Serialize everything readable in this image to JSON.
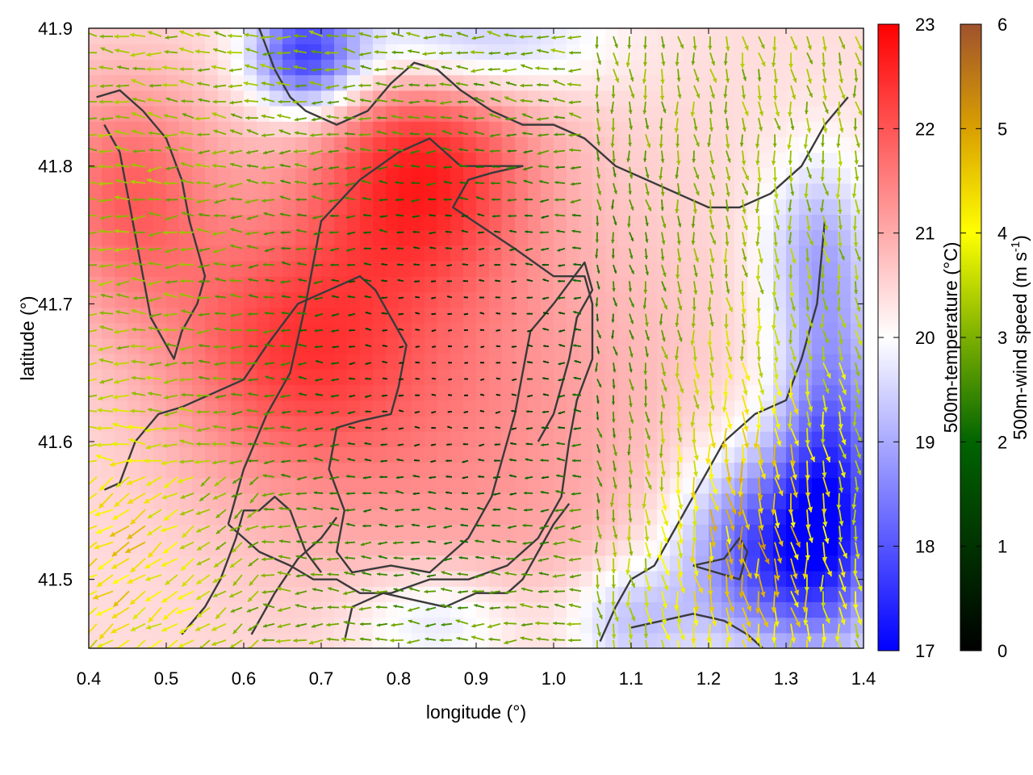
{
  "chart_data": {
    "type": "heatmap",
    "title": "",
    "xlabel": "longitude (°)",
    "ylabel": "latitude (°)",
    "xlim": [
      0.4,
      1.4
    ],
    "ylim": [
      41.45,
      41.9
    ],
    "x_ticks": [
      0.4,
      0.5,
      0.6,
      0.7,
      0.8,
      0.9,
      1.0,
      1.1,
      1.2,
      1.3,
      1.4
    ],
    "x_tick_labels": [
      "0.4",
      "0.5",
      "0.6",
      "0.7",
      "0.8",
      "0.9",
      "1.0",
      "1.1",
      "1.2",
      "1.3",
      "1.4"
    ],
    "y_ticks": [
      41.5,
      41.6,
      41.7,
      41.8,
      41.9
    ],
    "y_tick_labels": [
      "41.5",
      "41.6",
      "41.7",
      "41.8",
      "41.9"
    ],
    "grid": false,
    "temperature_colorbar": {
      "label": "500m-temperature (°C)",
      "range": [
        17,
        23
      ],
      "ticks": [
        17,
        18,
        19,
        20,
        21,
        22,
        23
      ],
      "tick_labels": [
        "17",
        "18",
        "19",
        "20",
        "21",
        "22",
        "23"
      ],
      "colors": [
        "#0000ff",
        "#ffffff",
        "#ff0000"
      ]
    },
    "wind_colorbar": {
      "label": "500m-wind speed (m s",
      "label_superscript": "-1",
      "label_suffix": ")",
      "range": [
        0,
        6
      ],
      "ticks": [
        0,
        1,
        2,
        3,
        4,
        5,
        6
      ],
      "tick_labels": [
        "0",
        "1",
        "2",
        "3",
        "4",
        "5",
        "6"
      ],
      "colors": [
        "#000000",
        "#006400",
        "#7cb000",
        "#ffff00",
        "#d9a000",
        "#a0522d"
      ]
    },
    "temperature_centers": [
      {
        "lon": 0.83,
        "lat": 41.8,
        "value": 22.3,
        "sigma_lon": 0.1,
        "sigma_lat": 0.06
      },
      {
        "lon": 0.66,
        "lat": 41.67,
        "value": 22.0,
        "sigma_lon": 0.12,
        "sigma_lat": 0.07
      },
      {
        "lon": 0.45,
        "lat": 41.78,
        "value": 21.8,
        "sigma_lon": 0.08,
        "sigma_lat": 0.06
      },
      {
        "lon": 0.9,
        "lat": 41.62,
        "value": 21.3,
        "sigma_lon": 0.18,
        "sigma_lat": 0.12
      },
      {
        "lon": 0.68,
        "lat": 41.88,
        "value": 17.8,
        "sigma_lon": 0.05,
        "sigma_lat": 0.03
      },
      {
        "lon": 0.88,
        "lat": 41.89,
        "value": 19.0,
        "sigma_lon": 0.12,
        "sigma_lat": 0.03
      },
      {
        "lon": 1.28,
        "lat": 41.52,
        "value": 17.8,
        "sigma_lon": 0.08,
        "sigma_lat": 0.05
      },
      {
        "lon": 1.36,
        "lat": 41.58,
        "value": 18.0,
        "sigma_lon": 0.05,
        "sigma_lat": 0.08
      },
      {
        "lon": 1.34,
        "lat": 41.74,
        "value": 19.2,
        "sigma_lon": 0.05,
        "sigma_lat": 0.05
      },
      {
        "lon": 0.85,
        "lat": 41.47,
        "value": 19.4,
        "sigma_lon": 0.08,
        "sigma_lat": 0.03
      },
      {
        "lon": 1.1,
        "lat": 41.47,
        "value": 19.2,
        "sigma_lon": 0.06,
        "sigma_lat": 0.03
      }
    ],
    "contours": [
      {
        "level": 21,
        "points": [
          [
            0.42,
            41.565
          ],
          [
            0.44,
            41.57
          ],
          [
            0.46,
            41.6
          ],
          [
            0.49,
            41.62
          ],
          [
            0.52,
            41.625
          ],
          [
            0.56,
            41.635
          ],
          [
            0.6,
            41.645
          ],
          [
            0.63,
            41.67
          ],
          [
            0.67,
            41.7
          ],
          [
            0.71,
            41.71
          ],
          [
            0.75,
            41.72
          ],
          [
            0.77,
            41.71
          ],
          [
            0.79,
            41.69
          ],
          [
            0.81,
            41.67
          ],
          [
            0.8,
            41.64
          ],
          [
            0.79,
            41.62
          ],
          [
            0.75,
            41.615
          ],
          [
            0.72,
            41.61
          ],
          [
            0.71,
            41.58
          ],
          [
            0.73,
            41.55
          ],
          [
            0.72,
            41.52
          ],
          [
            0.74,
            41.505
          ],
          [
            0.79,
            41.51
          ],
          [
            0.84,
            41.505
          ],
          [
            0.89,
            41.53
          ],
          [
            0.92,
            41.56
          ],
          [
            0.95,
            41.62
          ],
          [
            0.97,
            41.68
          ],
          [
            1.0,
            41.7
          ],
          [
            1.04,
            41.73
          ],
          [
            1.05,
            41.71
          ],
          [
            1.03,
            41.69
          ],
          [
            1.02,
            41.66
          ],
          [
            1.0,
            41.62
          ],
          [
            0.98,
            41.6
          ]
        ]
      },
      {
        "level": 21,
        "points": [
          [
            0.58,
            41.54
          ],
          [
            0.6,
            41.58
          ],
          [
            0.63,
            41.62
          ],
          [
            0.66,
            41.65
          ],
          [
            0.68,
            41.7
          ],
          [
            0.7,
            41.76
          ],
          [
            0.75,
            41.79
          ],
          [
            0.8,
            41.81
          ],
          [
            0.84,
            41.82
          ],
          [
            0.88,
            41.8
          ],
          [
            0.93,
            41.8
          ],
          [
            0.96,
            41.8
          ],
          [
            0.92,
            41.795
          ],
          [
            0.89,
            41.79
          ],
          [
            0.87,
            41.77
          ],
          [
            0.95,
            41.74
          ],
          [
            1.0,
            41.72
          ],
          [
            1.04,
            41.72
          ],
          [
            1.05,
            41.7
          ],
          [
            1.05,
            41.66
          ],
          [
            1.03,
            41.63
          ],
          [
            1.02,
            41.6
          ],
          [
            1.01,
            41.56
          ],
          [
            0.98,
            41.53
          ],
          [
            0.94,
            41.51
          ],
          [
            0.89,
            41.5
          ],
          [
            0.84,
            41.5
          ],
          [
            0.79,
            41.49
          ],
          [
            0.75,
            41.49
          ],
          [
            0.72,
            41.5
          ],
          [
            0.69,
            41.5
          ],
          [
            0.66,
            41.51
          ],
          [
            0.62,
            41.52
          ],
          [
            0.58,
            41.54
          ]
        ]
      },
      {
        "level": 20,
        "points": [
          [
            0.52,
            41.46
          ],
          [
            0.55,
            41.48
          ],
          [
            0.57,
            41.5
          ],
          [
            0.59,
            41.53
          ],
          [
            0.6,
            41.55
          ],
          [
            0.62,
            41.55
          ],
          [
            0.64,
            41.56
          ],
          [
            0.66,
            41.55
          ],
          [
            0.68,
            41.52
          ],
          [
            0.7,
            41.505
          ]
        ]
      },
      {
        "level": 20,
        "points": [
          [
            0.61,
            41.46
          ],
          [
            0.64,
            41.49
          ],
          [
            0.67,
            41.515
          ],
          [
            0.7,
            41.53
          ],
          [
            0.72,
            41.545
          ]
        ]
      },
      {
        "level": 20,
        "points": [
          [
            0.73,
            41.455
          ],
          [
            0.74,
            41.48
          ],
          [
            0.78,
            41.49
          ],
          [
            0.82,
            41.485
          ],
          [
            0.86,
            41.48
          ],
          [
            0.9,
            41.49
          ],
          [
            0.94,
            41.49
          ],
          [
            0.96,
            41.5
          ],
          [
            0.98,
            41.52
          ],
          [
            1.0,
            41.54
          ],
          [
            1.02,
            41.555
          ]
        ]
      },
      {
        "level": 20,
        "points": [
          [
            1.06,
            41.455
          ],
          [
            1.08,
            41.48
          ],
          [
            1.1,
            41.5
          ],
          [
            1.13,
            41.51
          ],
          [
            1.15,
            41.53
          ],
          [
            1.18,
            41.56
          ],
          [
            1.22,
            41.6
          ],
          [
            1.26,
            41.62
          ],
          [
            1.3,
            41.63
          ],
          [
            1.32,
            41.66
          ],
          [
            1.34,
            41.7
          ],
          [
            1.35,
            41.76
          ]
        ]
      },
      {
        "level": 20,
        "points": [
          [
            0.41,
            41.85
          ],
          [
            0.44,
            41.855
          ],
          [
            0.47,
            41.84
          ],
          [
            0.5,
            41.82
          ],
          [
            0.52,
            41.79
          ],
          [
            0.53,
            41.76
          ],
          [
            0.54,
            41.74
          ],
          [
            0.55,
            41.72
          ],
          [
            0.54,
            41.7
          ],
          [
            0.52,
            41.68
          ],
          [
            0.51,
            41.66
          ],
          [
            0.5,
            41.67
          ],
          [
            0.48,
            41.69
          ],
          [
            0.47,
            41.72
          ],
          [
            0.46,
            41.75
          ],
          [
            0.45,
            41.78
          ],
          [
            0.44,
            41.81
          ],
          [
            0.42,
            41.83
          ]
        ]
      },
      {
        "level": 20,
        "points": [
          [
            0.62,
            41.9
          ],
          [
            0.64,
            41.87
          ],
          [
            0.66,
            41.85
          ],
          [
            0.68,
            41.84
          ],
          [
            0.72,
            41.83
          ],
          [
            0.76,
            41.84
          ],
          [
            0.79,
            41.86
          ],
          [
            0.82,
            41.875
          ],
          [
            0.85,
            41.87
          ],
          [
            0.88,
            41.855
          ],
          [
            0.92,
            41.84
          ],
          [
            0.96,
            41.83
          ],
          [
            1.0,
            41.83
          ],
          [
            1.04,
            41.82
          ],
          [
            1.08,
            41.8
          ],
          [
            1.12,
            41.79
          ],
          [
            1.16,
            41.78
          ],
          [
            1.2,
            41.77
          ],
          [
            1.24,
            41.77
          ],
          [
            1.28,
            41.78
          ],
          [
            1.32,
            41.8
          ],
          [
            1.35,
            41.83
          ],
          [
            1.38,
            41.85
          ]
        ]
      },
      {
        "level": 20,
        "points": [
          [
            1.1,
            41.465
          ],
          [
            1.14,
            41.47
          ],
          [
            1.18,
            41.475
          ],
          [
            1.22,
            41.47
          ],
          [
            1.25,
            41.46
          ],
          [
            1.27,
            41.45
          ]
        ]
      },
      {
        "level": 19,
        "points": [
          [
            1.18,
            41.51
          ],
          [
            1.22,
            41.515
          ],
          [
            1.24,
            41.53
          ],
          [
            1.25,
            41.52
          ],
          [
            1.24,
            41.5
          ],
          [
            1.21,
            41.505
          ],
          [
            1.18,
            41.51
          ]
        ]
      }
    ]
  }
}
